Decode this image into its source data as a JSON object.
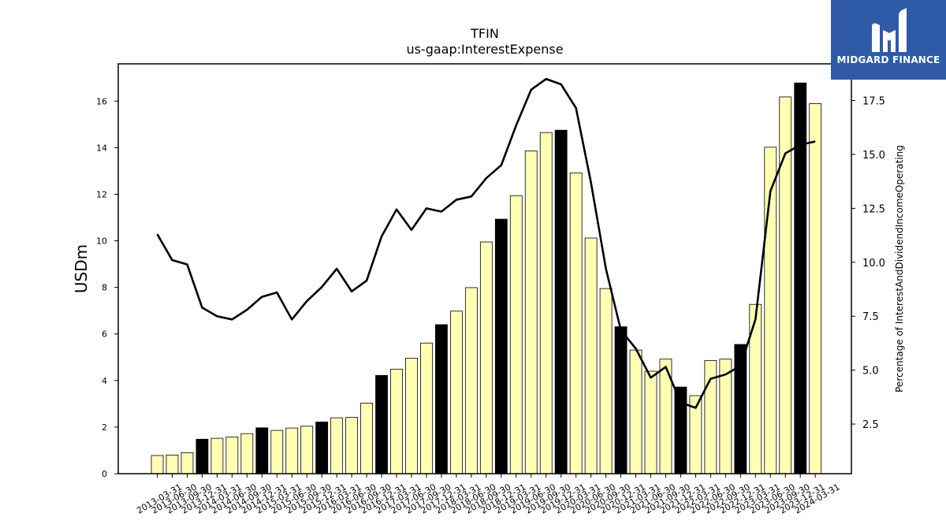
{
  "chart_data": {
    "type": "bar",
    "title": "TFIN",
    "subtitle": "us-gaap:InterestExpense",
    "ylabel": "USDm",
    "y2label": "Percentage of InterestAndDividendIncomeOperating",
    "ylim": [
      0,
      17.6
    ],
    "y2lim": [
      0.2,
      19.2
    ],
    "yticks": [
      0,
      2,
      4,
      6,
      8,
      10,
      12,
      14,
      16
    ],
    "y2ticks": [
      "2.5",
      "5.0",
      "7.5",
      "10.0",
      "12.5",
      "15.0",
      "17.5"
    ],
    "categories": [
      "2013-03-31",
      "2013-06-30",
      "2013-09-30",
      "2013-12-31",
      "2014-03-31",
      "2014-06-30",
      "2014-09-30",
      "2014-12-31",
      "2015-03-31",
      "2015-06-30",
      "2015-09-30",
      "2015-12-31",
      "2016-03-31",
      "2016-06-30",
      "2016-09-30",
      "2016-12-31",
      "2017-03-31",
      "2017-06-30",
      "2017-09-30",
      "2017-12-31",
      "2018-03-31",
      "2018-06-30",
      "2018-09-30",
      "2018-12-31",
      "2019-03-31",
      "2019-06-30",
      "2019-09-30",
      "2019-12-31",
      "2020-03-31",
      "2020-06-30",
      "2020-09-30",
      "2020-12-31",
      "2021-03-31",
      "2021-06-30",
      "2021-09-30",
      "2021-12-31",
      "2022-03-31",
      "2022-06-30",
      "2022-09-30",
      "2022-12-31",
      "2023-03-31",
      "2023-06-30",
      "2023-09-30",
      "2023-12-31",
      "2024-03-31"
    ],
    "series": [
      {
        "kind": "bar",
        "axis": "left",
        "values": [
          0.78,
          0.8,
          0.9,
          1.48,
          1.52,
          1.58,
          1.72,
          1.97,
          1.86,
          1.96,
          2.04,
          2.22,
          2.4,
          2.42,
          3.03,
          4.22,
          4.49,
          4.96,
          5.61,
          6.4,
          6.98,
          7.99,
          9.95,
          10.93,
          11.94,
          13.86,
          14.65,
          14.75,
          12.92,
          10.12,
          7.95,
          6.31,
          5.31,
          4.4,
          4.92,
          3.72,
          3.35,
          4.86,
          4.92,
          5.55,
          7.27,
          14.02,
          16.18,
          16.78,
          15.89
        ],
        "colors": [
          "#ffffb3",
          "#ffffb3",
          "#ffffb3",
          "#000000",
          "#ffffb3",
          "#ffffb3",
          "#ffffb3",
          "#000000",
          "#ffffb3",
          "#ffffb3",
          "#ffffb3",
          "#000000",
          "#ffffb3",
          "#ffffb3",
          "#ffffb3",
          "#000000",
          "#ffffb3",
          "#ffffb3",
          "#ffffb3",
          "#000000",
          "#ffffb3",
          "#ffffb3",
          "#ffffb3",
          "#000000",
          "#ffffb3",
          "#ffffb3",
          "#ffffb3",
          "#000000",
          "#ffffb3",
          "#ffffb3",
          "#ffffb3",
          "#000000",
          "#ffffb3",
          "#ffffb3",
          "#ffffb3",
          "#000000",
          "#ffffb3",
          "#ffffb3",
          "#ffffb3",
          "#000000",
          "#ffffb3",
          "#ffffb3",
          "#ffffb3",
          "#000000",
          "#ffffb3"
        ]
      },
      {
        "kind": "line",
        "axis": "right",
        "color": "#000000",
        "values": [
          11.3,
          10.1,
          9.9,
          7.9,
          7.5,
          7.35,
          7.8,
          8.4,
          8.6,
          7.35,
          8.2,
          8.85,
          9.7,
          8.65,
          9.15,
          11.2,
          12.45,
          11.5,
          12.5,
          12.35,
          12.9,
          13.05,
          13.9,
          14.5,
          16.35,
          18.0,
          18.5,
          18.25,
          17.15,
          13.7,
          9.7,
          6.85,
          6.0,
          4.65,
          5.15,
          3.5,
          3.25,
          4.6,
          4.8,
          5.2,
          7.35,
          13.3,
          15.05,
          15.45,
          15.6
        ]
      }
    ]
  },
  "logo": {
    "text": "MIDGARD FINANCE",
    "background": "#2f5aa8"
  }
}
